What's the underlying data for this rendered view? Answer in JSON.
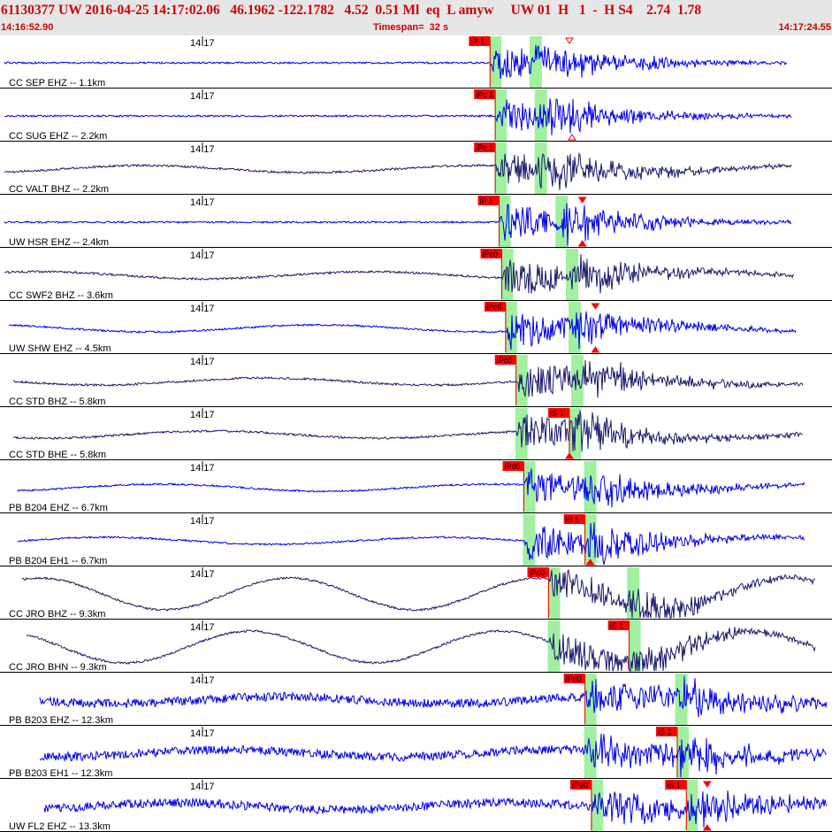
{
  "header": {
    "title": "61130377 UW 2016-04-25 14:17:02.06   46.1962 -122.1782   4.52  0.51 Ml  eq  L amyw     UW 01  H   1  -  H S4    2.74  1.78",
    "start_time": "14:16:52.90",
    "timespan": "Timespan=  32 s",
    "end_time": "14:17:24.55"
  },
  "colors": {
    "header_bg": "#e6e6e6",
    "header_text": "#d00000",
    "trace_blue": "#0000ee",
    "trace_navy": "#1a1a6e",
    "pick_red": "#ff0000",
    "window_green": "#a0f0a0"
  },
  "chart_data": {
    "type": "seismogram",
    "time_start": "14:16:52.90",
    "time_end": "14:17:24.55",
    "timespan_s": 32,
    "traces": [
      {
        "label": "CC SEP EHZ -- 1.1km",
        "tick": "14:17",
        "picks": [
          {
            "text": "iP 1",
            "t": 18.85
          }
        ],
        "p_t": 18.85,
        "s_t": 20.4,
        "color": "blue",
        "triangles": [
          {
            "t": 21.9,
            "dir": "down",
            "hollow": true
          }
        ]
      },
      {
        "label": "CC SUG EHZ -- 2.2km",
        "tick": "14:17",
        "picks": [
          {
            "text": "iPc 1",
            "t": 19.05
          }
        ],
        "p_t": 19.05,
        "s_t": 20.6,
        "color": "blue",
        "triangles": [
          {
            "t": 22.0,
            "dir": "up",
            "hollow": true
          }
        ]
      },
      {
        "label": "CC VALT BHZ -- 2.2km",
        "tick": "14:17",
        "picks": [
          {
            "text": "iPc 1",
            "t": 19.05
          }
        ],
        "p_t": 19.05,
        "s_t": 20.6,
        "color": "navy",
        "triangles": []
      },
      {
        "label": "UW HSR EHZ -- 2.4km",
        "tick": "14:17",
        "picks": [
          {
            "text": "iP 1",
            "t": 19.2
          }
        ],
        "p_t": 19.2,
        "s_t": 21.4,
        "color": "blue",
        "triangles": [
          {
            "t": 22.4,
            "dir": "down",
            "hollow": false
          },
          {
            "t": 22.4,
            "dir": "up",
            "hollow": false
          }
        ]
      },
      {
        "label": "CC SWF2 BHZ -- 3.6km",
        "tick": "14:17",
        "picks": [
          {
            "text": "iPc0",
            "t": 19.3
          }
        ],
        "p_t": 19.3,
        "s_t": 21.8,
        "color": "navy",
        "triangles": []
      },
      {
        "label": "UW SHW EHZ -- 4.5km",
        "tick": "14:17",
        "picks": [
          {
            "text": "iPc0",
            "t": 19.45
          }
        ],
        "p_t": 19.45,
        "s_t": 21.9,
        "color": "blue",
        "triangles": [
          {
            "t": 22.9,
            "dir": "down",
            "hollow": false
          },
          {
            "t": 22.9,
            "dir": "up",
            "hollow": false
          }
        ]
      },
      {
        "label": "CC STD BHZ -- 5.8km",
        "tick": "14:17",
        "picks": [
          {
            "text": "iPc0",
            "t": 19.85
          }
        ],
        "p_t": 19.85,
        "s_t": 22.0,
        "color": "navy",
        "triangles": []
      },
      {
        "label": "CC STD BHE -- 5.8km",
        "tick": "14:17",
        "picks": [
          {
            "text": "iS 1",
            "t": 21.9
          }
        ],
        "p_t": 19.85,
        "s_t": 21.9,
        "color": "navy",
        "triangles": [
          {
            "t": 21.9,
            "dir": "up",
            "hollow": false
          }
        ]
      },
      {
        "label": "PB B204 EHZ -- 6.7km",
        "tick": "14:17",
        "picks": [
          {
            "text": "iPd0",
            "t": 20.15
          }
        ],
        "p_t": 20.15,
        "s_t": 22.5,
        "color": "blue",
        "triangles": []
      },
      {
        "label": "PB B204 EH1 -- 6.7km",
        "tick": "14:17",
        "picks": [
          {
            "text": "iS 1",
            "t": 22.5
          }
        ],
        "p_t": 20.15,
        "s_t": 22.5,
        "color": "blue",
        "triangles": [
          {
            "t": 22.7,
            "dir": "up",
            "hollow": false
          }
        ]
      },
      {
        "label": "CC JRO BHZ -- 9.3km",
        "tick": "14:17",
        "picks": [
          {
            "text": "iPc0",
            "t": 21.1
          }
        ],
        "p_t": 21.1,
        "s_t": 24.15,
        "color": "navy",
        "triangles": []
      },
      {
        "label": "CC JRO BHN -- 9.3km",
        "tick": "14:17",
        "picks": [
          {
            "text": "iS 1",
            "t": 24.2
          }
        ],
        "p_t": 21.1,
        "s_t": 24.2,
        "color": "navy",
        "triangles": []
      },
      {
        "label": "PB B203 EHZ -- 12.3km",
        "tick": "14:17",
        "picks": [
          {
            "text": "iPd0",
            "t": 22.5
          }
        ],
        "p_t": 22.5,
        "s_t": 26.0,
        "color": "blue",
        "triangles": []
      },
      {
        "label": "PB B203 EH1 -- 12.3km",
        "tick": "14:17",
        "picks": [
          {
            "text": "iS 1",
            "t": 26.05
          }
        ],
        "p_t": 22.5,
        "s_t": 26.05,
        "color": "blue",
        "triangles": []
      },
      {
        "label": "UW FL2 EHZ -- 13.3km",
        "tick": "14:17",
        "picks": [
          {
            "text": "iPd0",
            "t": 22.75
          },
          {
            "text": "iS 1",
            "t": 26.4
          }
        ],
        "p_t": 22.75,
        "s_t": 26.4,
        "color": "blue",
        "triangles": [
          {
            "t": 27.2,
            "dir": "down",
            "hollow": false
          },
          {
            "t": 27.2,
            "dir": "up",
            "hollow": false
          }
        ]
      }
    ]
  }
}
